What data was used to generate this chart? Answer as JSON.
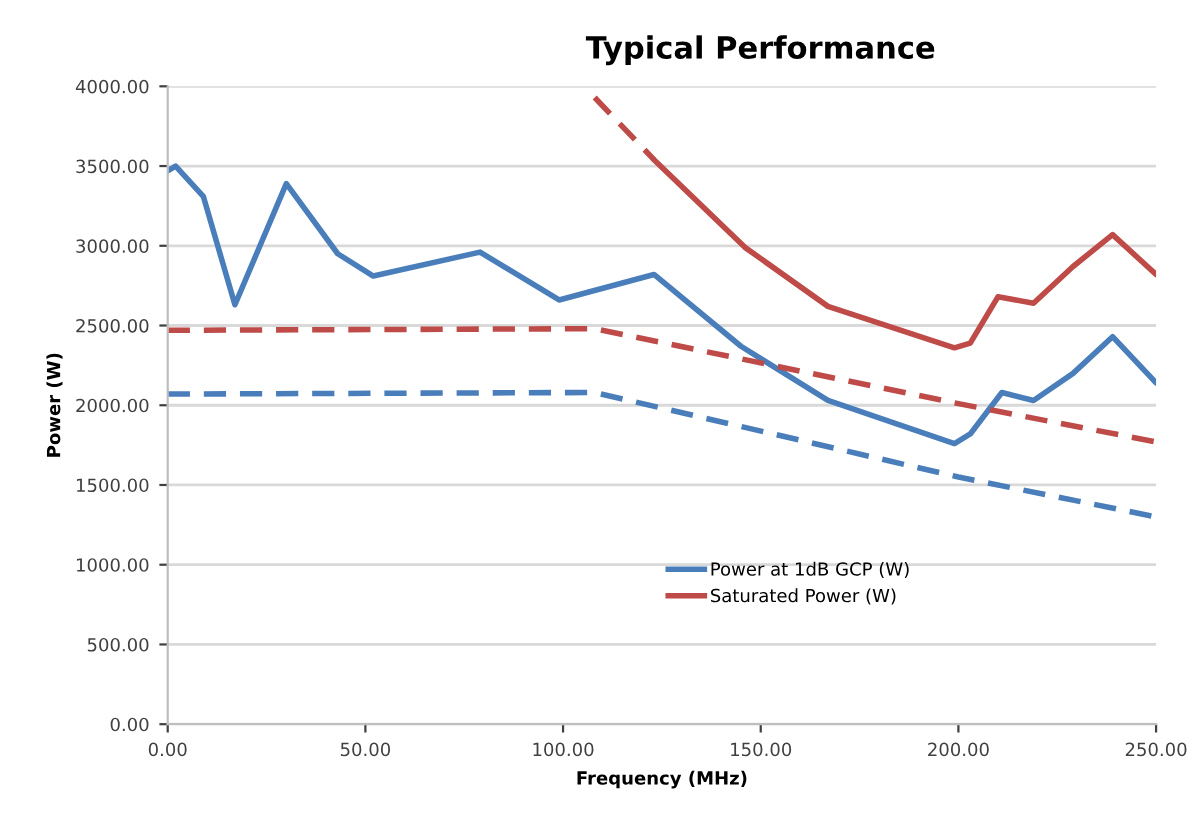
{
  "chart_data": {
    "type": "line",
    "title": "Typical Performance",
    "xlabel": "Frequency (MHz)",
    "ylabel": "Power (W)",
    "xlim": [
      0,
      250
    ],
    "xticks": [
      {
        "value": 0,
        "label": "0.00"
      },
      {
        "value": 50,
        "label": "50.00"
      },
      {
        "value": 100,
        "label": "100.00"
      },
      {
        "value": 150,
        "label": "150.00"
      },
      {
        "value": 200,
        "label": "200.00"
      },
      {
        "value": 250,
        "label": "250.00"
      }
    ],
    "ylim": [
      0,
      4000
    ],
    "yticks": [
      {
        "value": 0,
        "label": "0.00"
      },
      {
        "value": 500,
        "label": "500.00"
      },
      {
        "value": 1000,
        "label": "1000.00"
      },
      {
        "value": 1500,
        "label": "1500.00"
      },
      {
        "value": 2000,
        "label": "2000.00"
      },
      {
        "value": 2500,
        "label": "2500.00"
      },
      {
        "value": 3000,
        "label": "3000.00"
      },
      {
        "value": 3500,
        "label": "3500.00"
      },
      {
        "value": 4000,
        "label": "4000.00"
      }
    ],
    "grid": "y",
    "legend": "bottom right",
    "series": [
      {
        "name": "Power at 1dB GCP (W)",
        "color": "#4a7ebb",
        "line_style": "solid",
        "x": [
          0,
          2,
          9,
          17,
          30,
          43,
          52,
          79,
          99,
          123,
          145,
          167,
          199,
          203,
          211,
          219,
          229,
          239,
          250
        ],
        "values": [
          3470,
          3500,
          3310,
          2630,
          3390,
          2950,
          2810,
          2960,
          2660,
          2820,
          2370,
          2030,
          1760,
          1820,
          2080,
          2030,
          2200,
          2430,
          2140
        ]
      },
      {
        "name": "Saturated Power (W)",
        "color": "#be4b48",
        "line_style": "solid",
        "x": [
          123,
          146,
          167,
          199,
          203,
          210,
          219,
          229,
          239,
          250
        ],
        "values": [
          3540,
          2990,
          2620,
          2360,
          2390,
          2680,
          2640,
          2870,
          3070,
          2820
        ]
      },
      {
        "color": "#be4b48",
        "line_style": "dashed",
        "x": [
          108,
          123
        ],
        "values": [
          3930,
          3540
        ]
      },
      {
        "color": "#be4b48",
        "line_style": "dashed",
        "x": [
          0,
          108,
          200,
          250
        ],
        "values": [
          2470,
          2480,
          2010,
          1770
        ]
      },
      {
        "color": "#4a7ebb",
        "line_style": "dashed",
        "x": [
          0,
          108,
          200,
          250
        ],
        "values": [
          2070,
          2080,
          1550,
          1300
        ]
      }
    ]
  }
}
